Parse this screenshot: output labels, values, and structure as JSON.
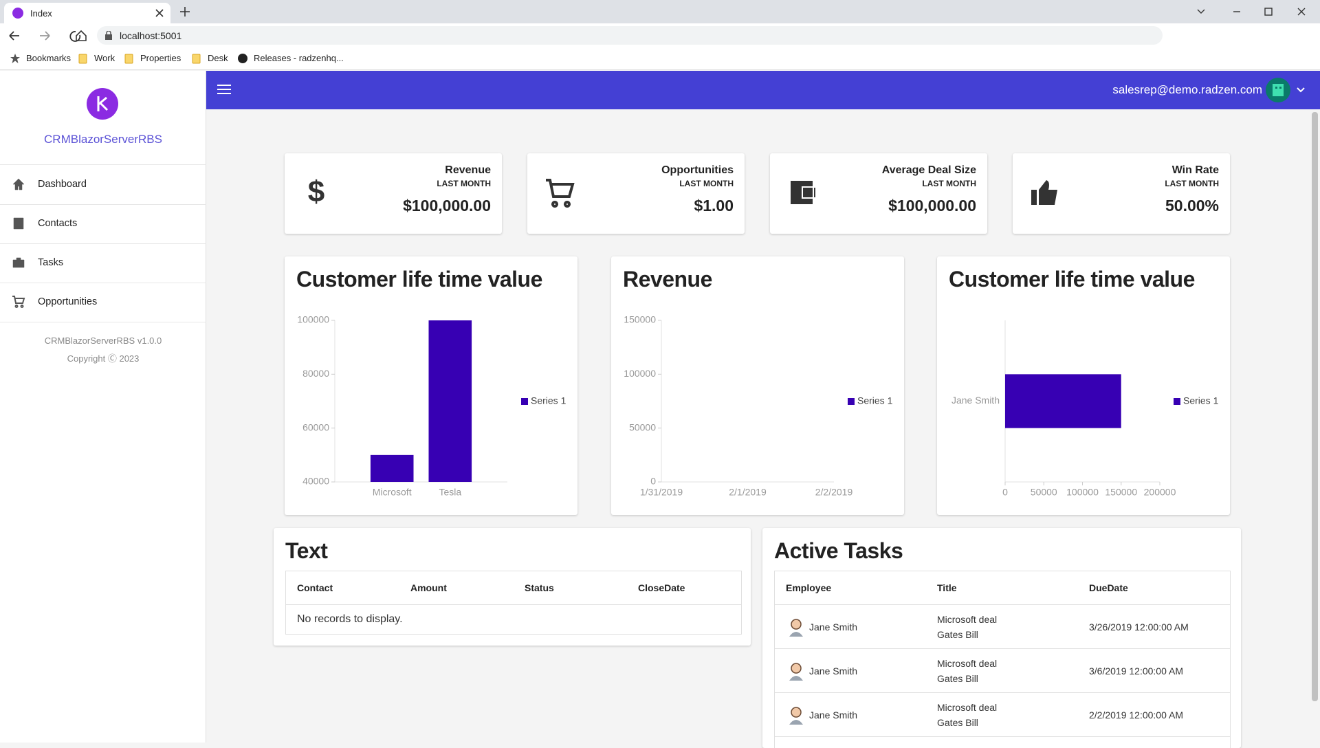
{
  "browser": {
    "tab_title": "Index",
    "url": "localhost:5001",
    "bookmarks": [
      "Bookmarks",
      "Work",
      "Properties",
      "Desk",
      "Releases - radzenhq..."
    ]
  },
  "sidebar": {
    "app_name": "CRMBlazorServerRBS",
    "nav": [
      "Dashboard",
      "Contacts",
      "Tasks",
      "Opportunities"
    ],
    "version": "CRMBlazorServerRBS v1.0.0",
    "copyright": "Copyright Ⓒ 2023"
  },
  "header": {
    "user": "salesrep@demo.radzen.com"
  },
  "kpis": [
    {
      "title": "Revenue",
      "subtitle": "LAST MONTH",
      "value": "$100,000.00"
    },
    {
      "title": "Opportunities",
      "subtitle": "LAST MONTH",
      "value": "$1.00"
    },
    {
      "title": "Average Deal Size",
      "subtitle": "LAST MONTH",
      "value": "$100,000.00"
    },
    {
      "title": "Win Rate",
      "subtitle": "LAST MONTH",
      "value": "50.00%"
    }
  ],
  "chart_data": [
    {
      "type": "bar",
      "title": "Customer life time value",
      "categories": [
        "Microsoft",
        "Tesla"
      ],
      "series": [
        {
          "name": "Series 1",
          "color": "#3700b3",
          "values": [
            50000,
            100000
          ]
        }
      ],
      "ylim": [
        40000,
        100000
      ],
      "yticks": [
        40000,
        60000,
        80000,
        100000
      ],
      "grid": false,
      "legend": "right"
    },
    {
      "type": "line",
      "title": "Revenue",
      "categories": [
        "1/31/2019",
        "2/1/2019",
        "2/2/2019"
      ],
      "series": [
        {
          "name": "Series 1",
          "color": "#3700b3",
          "values": [
            null,
            null,
            null
          ]
        }
      ],
      "ylim": [
        0,
        150000
      ],
      "yticks": [
        0,
        50000,
        100000,
        150000
      ],
      "grid": false,
      "legend": "right"
    },
    {
      "type": "barh",
      "title": "Customer life time value",
      "categories": [
        "Jane Smith"
      ],
      "series": [
        {
          "name": "Series 1",
          "color": "#3700b3",
          "values": [
            150000
          ]
        }
      ],
      "xlim": [
        0,
        200000
      ],
      "xticks": [
        0,
        50000,
        100000,
        150000,
        200000
      ],
      "grid": false,
      "legend": "right"
    }
  ],
  "text_grid": {
    "title": "Text",
    "columns": [
      "Contact",
      "Amount",
      "Status",
      "CloseDate"
    ],
    "empty": "No records to display."
  },
  "tasks": {
    "title": "Active Tasks",
    "columns": [
      "Employee",
      "Title",
      "DueDate"
    ],
    "rows": [
      {
        "employee": "Jane Smith",
        "title": "Microsoft deal",
        "contact": "Gates Bill",
        "due": "3/26/2019 12:00:00 AM"
      },
      {
        "employee": "Jane Smith",
        "title": "Microsoft deal",
        "contact": "Gates Bill",
        "due": "3/6/2019 12:00:00 AM"
      },
      {
        "employee": "Jane Smith",
        "title": "Microsoft deal",
        "contact": "Gates Bill",
        "due": "2/2/2019 12:00:00 AM"
      }
    ]
  }
}
